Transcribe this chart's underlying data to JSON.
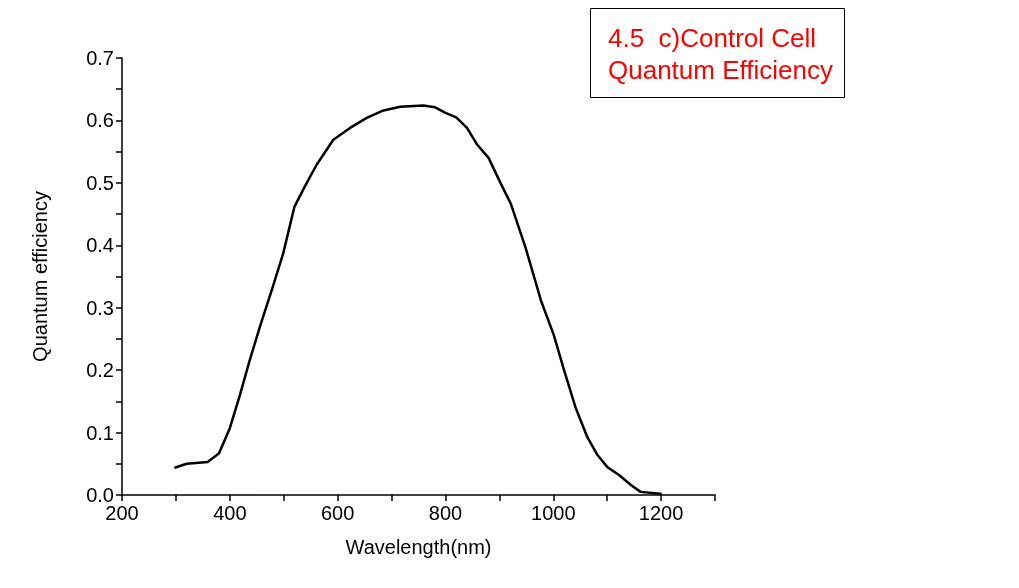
{
  "chart_data": {
    "type": "line",
    "title": "4.5  c)Control Cell\nQuantum Efficiency",
    "xlabel": "Wavelength(nm)",
    "ylabel": "Quantum efficiency",
    "color": "#000000",
    "grid": false,
    "marker": "none",
    "line_style": "solid",
    "x": [
      299,
      320,
      359,
      380,
      400,
      418,
      437,
      456,
      480,
      499,
      520,
      539,
      561,
      592,
      623,
      654,
      685,
      716,
      759,
      781,
      800,
      820,
      840,
      859,
      880,
      902,
      921,
      948,
      977,
      1001,
      1020,
      1041,
      1063,
      1082,
      1100,
      1122,
      1144,
      1162,
      1199
    ],
    "values": [
      0.044,
      0.05,
      0.053,
      0.067,
      0.107,
      0.158,
      0.216,
      0.27,
      0.334,
      0.387,
      0.462,
      0.494,
      0.529,
      0.569,
      0.588,
      0.604,
      0.616,
      0.622,
      0.624,
      0.621,
      0.612,
      0.605,
      0.588,
      0.561,
      0.54,
      0.5,
      0.467,
      0.398,
      0.312,
      0.256,
      0.2,
      0.141,
      0.093,
      0.064,
      0.045,
      0.032,
      0.016,
      0.005,
      0.002
    ],
    "xlim": [
      200,
      1300
    ],
    "xticks": [
      200,
      {
        "value": 300,
        "label": null
      },
      400,
      {
        "value": 500,
        "label": null
      },
      600,
      {
        "value": 700,
        "label": null
      },
      800,
      {
        "value": 900,
        "label": null
      },
      1000,
      {
        "value": 1100,
        "label": null
      },
      1200,
      {
        "value": 1300,
        "label": null
      }
    ],
    "ylim": [
      0,
      0.7
    ],
    "yticks": [
      {
        "value": 0,
        "label": "0.0"
      },
      {
        "value": 0.05,
        "label": null
      },
      0.1,
      {
        "value": 0.15,
        "label": null
      },
      0.2,
      {
        "value": 0.25,
        "label": null
      },
      0.3,
      {
        "value": 0.35,
        "label": null
      },
      0.4,
      {
        "value": 0.45,
        "label": null
      },
      0.5,
      {
        "value": 0.55,
        "label": null
      },
      0.6,
      {
        "value": 0.65,
        "label": null
      },
      0.7
    ]
  }
}
